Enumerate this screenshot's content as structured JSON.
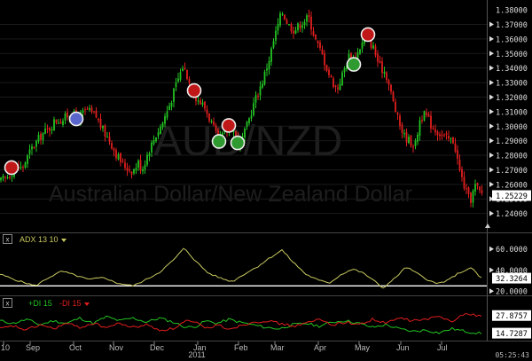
{
  "chart_data": [
    {
      "type": "candlestick",
      "title": "AUD/NZD",
      "subtitle": "Australian Dollar/New Zealand Dollar",
      "ylim": [
        1.2355,
        1.3825
      ],
      "yticks": [
        "1.37000",
        "1.36000",
        "1.35000",
        "1.34000",
        "1.33000",
        "1.32000",
        "1.31000",
        "1.30000",
        "1.29000",
        "1.28000",
        "1.27000",
        "1.26000",
        "1.25000",
        "1.24000"
      ],
      "ytick_values": [
        1.37,
        1.36,
        1.35,
        1.34,
        1.33,
        1.32,
        1.31,
        1.3,
        1.29,
        1.28,
        1.27,
        1.26,
        1.25,
        1.24
      ],
      "ytop_label": "1.38000",
      "last_value": "1.25229",
      "last_value_num": 1.25229,
      "path_points": [
        [
          0,
          1.262
        ],
        [
          10,
          1.266
        ],
        [
          18,
          1.272
        ],
        [
          25,
          1.271
        ],
        [
          35,
          1.284
        ],
        [
          48,
          1.295
        ],
        [
          57,
          1.299
        ],
        [
          62,
          1.304
        ],
        [
          70,
          1.304
        ],
        [
          79,
          1.309
        ],
        [
          88,
          1.306
        ],
        [
          98,
          1.311
        ],
        [
          108,
          1.307
        ],
        [
          117,
          1.296
        ],
        [
          124,
          1.29
        ],
        [
          130,
          1.282
        ],
        [
          138,
          1.274
        ],
        [
          144,
          1.271
        ],
        [
          150,
          1.269
        ],
        [
          156,
          1.275
        ],
        [
          160,
          1.27
        ],
        [
          167,
          1.282
        ],
        [
          175,
          1.293
        ],
        [
          183,
          1.302
        ],
        [
          192,
          1.316
        ],
        [
          200,
          1.331
        ],
        [
          206,
          1.341
        ],
        [
          210,
          1.337
        ],
        [
          216,
          1.325
        ],
        [
          222,
          1.319
        ],
        [
          230,
          1.314
        ],
        [
          238,
          1.303
        ],
        [
          246,
          1.29
        ],
        [
          255,
          1.296
        ],
        [
          262,
          1.3
        ],
        [
          268,
          1.289
        ],
        [
          274,
          1.292
        ],
        [
          280,
          1.303
        ],
        [
          287,
          1.317
        ],
        [
          296,
          1.331
        ],
        [
          303,
          1.345
        ],
        [
          310,
          1.362
        ],
        [
          318,
          1.379
        ],
        [
          325,
          1.37
        ],
        [
          332,
          1.366
        ],
        [
          340,
          1.371
        ],
        [
          348,
          1.375
        ],
        [
          356,
          1.359
        ],
        [
          364,
          1.348
        ],
        [
          372,
          1.334
        ],
        [
          380,
          1.325
        ],
        [
          387,
          1.337
        ],
        [
          394,
          1.349
        ],
        [
          400,
          1.345
        ],
        [
          407,
          1.356
        ],
        [
          414,
          1.361
        ],
        [
          421,
          1.354
        ],
        [
          428,
          1.341
        ],
        [
          435,
          1.337
        ],
        [
          442,
          1.32
        ],
        [
          449,
          1.304
        ],
        [
          456,
          1.293
        ],
        [
          462,
          1.29
        ],
        [
          468,
          1.286
        ],
        [
          474,
          1.306
        ],
        [
          480,
          1.308
        ],
        [
          487,
          1.3
        ],
        [
          494,
          1.296
        ],
        [
          500,
          1.293
        ],
        [
          505,
          1.291
        ],
        [
          512,
          1.29
        ],
        [
          518,
          1.27
        ],
        [
          524,
          1.258
        ],
        [
          530,
          1.248
        ],
        [
          536,
          1.259
        ],
        [
          542,
          1.254
        ]
      ],
      "circles": [
        {
          "x": 13,
          "y": 1.2715,
          "fill": "#c01818"
        },
        {
          "x": 86,
          "y": 1.305,
          "fill": "#5a66cc"
        },
        {
          "x": 219,
          "y": 1.3245,
          "fill": "#c01818"
        },
        {
          "x": 247,
          "y": 1.2895,
          "fill": "#2f9a2f"
        },
        {
          "x": 258,
          "y": 1.3005,
          "fill": "#c01818"
        },
        {
          "x": 268,
          "y": 1.2885,
          "fill": "#2f9a2f"
        },
        {
          "x": 399,
          "y": 1.3425,
          "fill": "#2f9a2f"
        },
        {
          "x": 415,
          "y": 1.363,
          "fill": "#c01818"
        }
      ]
    },
    {
      "type": "line",
      "panel_label": "ADX 13 10",
      "ylim": [
        18.5,
        64
      ],
      "yticks": [
        "60.0000",
        "40.0000",
        "20.0000"
      ],
      "ytick_values": [
        60,
        40,
        20
      ],
      "current_value": "32.3264",
      "threshold": 25,
      "series": [
        {
          "name": "ADX",
          "color": "#c8c860",
          "points": [
            [
              0,
              36
            ],
            [
              20,
              30
            ],
            [
              40,
              25
            ],
            [
              55,
              33
            ],
            [
              70,
              39
            ],
            [
              85,
              35
            ],
            [
              100,
              31
            ],
            [
              118,
              33
            ],
            [
              130,
              28
            ],
            [
              150,
              25
            ],
            [
              165,
              31
            ],
            [
              180,
              38
            ],
            [
              195,
              49
            ],
            [
              208,
              61
            ],
            [
              220,
              49
            ],
            [
              235,
              37
            ],
            [
              250,
              32
            ],
            [
              262,
              29
            ],
            [
              275,
              36
            ],
            [
              290,
              43
            ],
            [
              305,
              52
            ],
            [
              318,
              59
            ],
            [
              330,
              48
            ],
            [
              345,
              36
            ],
            [
              360,
              30
            ],
            [
              372,
              28
            ],
            [
              385,
              36
            ],
            [
              398,
              41
            ],
            [
              410,
              37
            ],
            [
              420,
              31
            ],
            [
              432,
              23
            ],
            [
              445,
              32
            ],
            [
              458,
              43
            ],
            [
              470,
              37
            ],
            [
              482,
              31
            ],
            [
              492,
              27
            ],
            [
              505,
              30
            ],
            [
              515,
              36
            ],
            [
              525,
              40
            ],
            [
              533,
              42
            ],
            [
              540,
              34
            ],
            [
              545,
              32
            ]
          ]
        }
      ]
    },
    {
      "type": "line",
      "panel_label_plus": "+DI 15",
      "panel_label_minus": "-DI 15",
      "ylim": [
        10.5,
        33
      ],
      "current_values": [
        "27.8757",
        "14.7287"
      ],
      "current_values_num": [
        27.8757,
        14.7287
      ],
      "series": [
        {
          "name": "+DI 15",
          "color": "#22c322",
          "points": [
            [
              0,
              24
            ],
            [
              15,
              22
            ],
            [
              30,
              25
            ],
            [
              45,
              21
            ],
            [
              60,
              24
            ],
            [
              75,
              22
            ],
            [
              90,
              26
            ],
            [
              105,
              22
            ],
            [
              120,
              27
            ],
            [
              135,
              24
            ],
            [
              150,
              26
            ],
            [
              165,
              23
            ],
            [
              180,
              26
            ],
            [
              195,
              23
            ],
            [
              210,
              19
            ],
            [
              222,
              20
            ],
            [
              232,
              24
            ],
            [
              245,
              22
            ],
            [
              258,
              25
            ],
            [
              270,
              23
            ],
            [
              285,
              21
            ],
            [
              300,
              19
            ],
            [
              315,
              18
            ],
            [
              330,
              21
            ],
            [
              345,
              22
            ],
            [
              360,
              20
            ],
            [
              375,
              23
            ],
            [
              390,
              24
            ],
            [
              405,
              22
            ],
            [
              420,
              19
            ],
            [
              435,
              21
            ],
            [
              450,
              18
            ],
            [
              465,
              16
            ],
            [
              480,
              17
            ],
            [
              495,
              15
            ],
            [
              510,
              18
            ],
            [
              525,
              16
            ],
            [
              540,
              14.7
            ]
          ]
        },
        {
          "name": "-DI 15",
          "color": "#e01e1e",
          "points": [
            [
              0,
              18
            ],
            [
              15,
              20
            ],
            [
              30,
              17
            ],
            [
              45,
              21
            ],
            [
              60,
              18
            ],
            [
              75,
              22
            ],
            [
              90,
              19
            ],
            [
              105,
              22
            ],
            [
              120,
              19
            ],
            [
              135,
              22
            ],
            [
              150,
              19
            ],
            [
              165,
              21
            ],
            [
              180,
              17
            ],
            [
              195,
              18
            ],
            [
              210,
              24
            ],
            [
              222,
              22
            ],
            [
              232,
              18
            ],
            [
              245,
              21
            ],
            [
              258,
              18
            ],
            [
              270,
              20
            ],
            [
              285,
              23
            ],
            [
              300,
              24
            ],
            [
              315,
              22
            ],
            [
              330,
              20
            ],
            [
              345,
              22
            ],
            [
              360,
              25
            ],
            [
              375,
              21
            ],
            [
              390,
              23
            ],
            [
              405,
              21
            ],
            [
              420,
              25
            ],
            [
              435,
              22
            ],
            [
              450,
              26
            ],
            [
              465,
              24
            ],
            [
              480,
              25
            ],
            [
              495,
              27
            ],
            [
              510,
              24
            ],
            [
              520,
              28
            ],
            [
              530,
              29
            ],
            [
              540,
              27.9
            ]
          ]
        }
      ]
    }
  ],
  "xaxis": {
    "months": [
      "10",
      "Sep",
      "Oct",
      "Nov",
      "Dec",
      "Jan",
      "Feb",
      "Mar",
      "Apr",
      "May",
      "Jun",
      "Jul"
    ],
    "year": "2011"
  },
  "clock": "05:25:43",
  "colors": {
    "up": "#22c322",
    "down": "#e01e1e",
    "bg": "#000000",
    "grid": "#1a1a1a"
  },
  "icons": {
    "close": "x-box-icon",
    "dropdown": "triangle-down-icon",
    "scroll": "triangle-up-icon"
  }
}
